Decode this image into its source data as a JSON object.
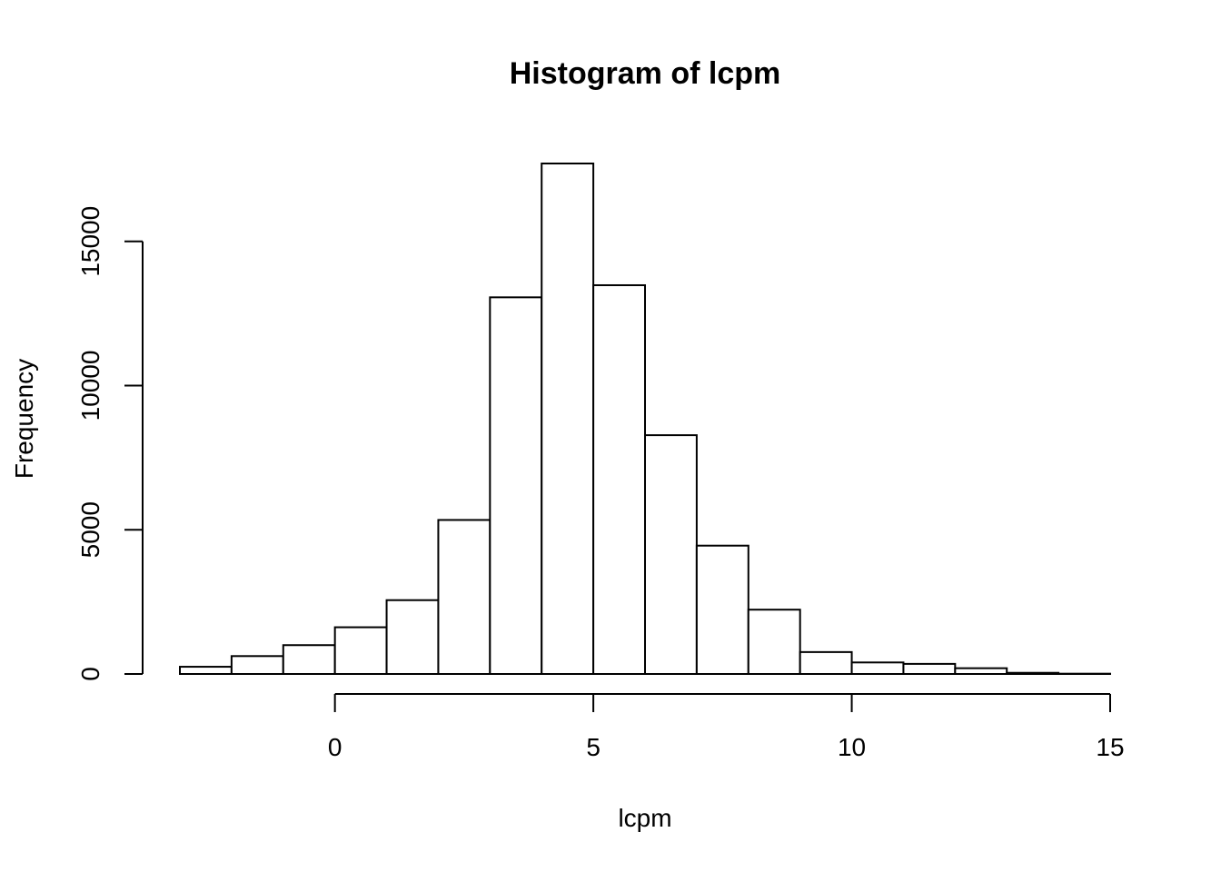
{
  "chart_data": {
    "type": "bar",
    "title": "Histogram of lcpm",
    "xlabel": "lcpm",
    "ylabel": "Frequency",
    "bin_edges": [
      -3,
      -2,
      -1,
      0,
      1,
      2,
      3,
      4,
      5,
      6,
      7,
      8,
      9,
      10,
      11,
      12,
      13,
      14,
      15
    ],
    "values": [
      250,
      620,
      1000,
      1620,
      2560,
      5340,
      13060,
      17700,
      13480,
      8280,
      4450,
      2230,
      760,
      400,
      350,
      200,
      40,
      10
    ],
    "x_ticks": [
      0,
      5,
      10,
      15
    ],
    "x_tick_labels": [
      "0",
      "5",
      "10",
      "15"
    ],
    "y_ticks": [
      0,
      5000,
      10000,
      15000
    ],
    "y_tick_labels": [
      "0",
      "5000",
      "10000",
      "15000"
    ],
    "xlim": [
      -3,
      15
    ],
    "ylim": [
      0,
      17700
    ],
    "grid": false,
    "bar_fill": "#ffffff",
    "bar_stroke": "#000000"
  }
}
